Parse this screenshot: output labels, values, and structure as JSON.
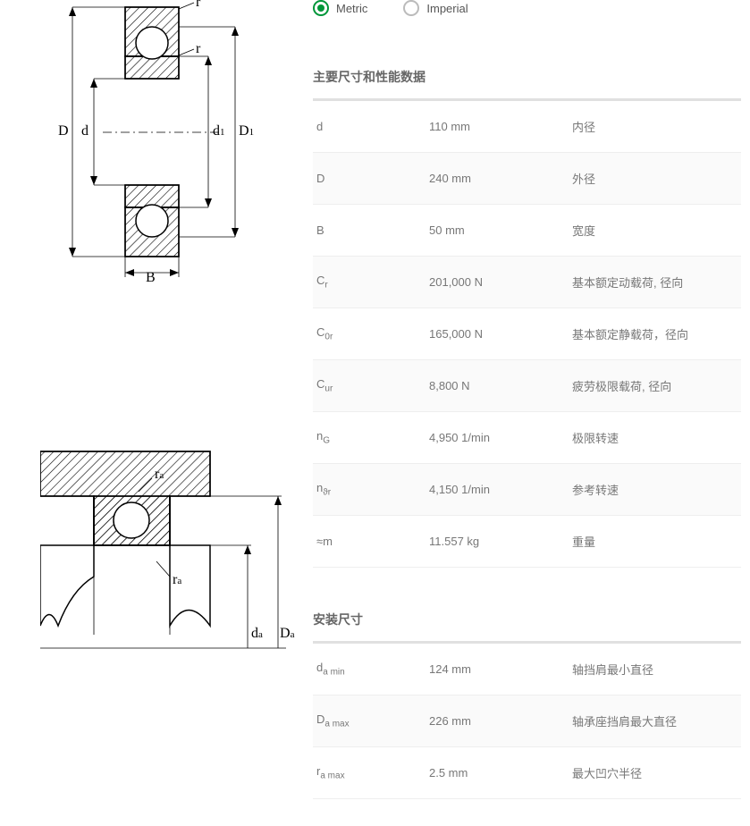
{
  "units": {
    "metric_label": "Metric",
    "imperial_label": "Imperial",
    "selected": "metric"
  },
  "colors": {
    "accent": "#009639",
    "text": "#666666",
    "row_alt_bg": "#fafafa",
    "border": "#e0e0e0"
  },
  "sections": [
    {
      "title": "主要尺寸和性能数据",
      "rows": [
        {
          "sym": "d",
          "sub": "",
          "value": "110 mm",
          "desc": "内径",
          "alt": false
        },
        {
          "sym": "D",
          "sub": "",
          "value": "240 mm",
          "desc": "外径",
          "alt": true
        },
        {
          "sym": "B",
          "sub": "",
          "value": "50 mm",
          "desc": "宽度",
          "alt": false
        },
        {
          "sym": "C",
          "sub": "r",
          "value": "201,000 N",
          "desc": "基本额定动载荷, 径向",
          "alt": true
        },
        {
          "sym": "C",
          "sub": "0r",
          "value": "165,000 N",
          "desc": "基本额定静载荷，径向",
          "alt": false
        },
        {
          "sym": "C",
          "sub": "ur",
          "value": "8,800 N",
          "desc": "疲劳极限载荷, 径向",
          "alt": true
        },
        {
          "sym": "n",
          "sub": "G",
          "value": "4,950 1/min",
          "desc": "极限转速",
          "alt": false
        },
        {
          "sym": "n",
          "sub": "ϑr",
          "value": "4,150 1/min",
          "desc": "参考转速",
          "alt": true
        },
        {
          "sym": "≈m",
          "sub": "",
          "value": "11.557 kg",
          "desc": "重量",
          "alt": false
        }
      ]
    },
    {
      "title": "安装尺寸",
      "rows": [
        {
          "sym": "d",
          "sub": "a min",
          "value": "124 mm",
          "desc": "轴挡肩最小直径",
          "alt": false
        },
        {
          "sym": "D",
          "sub": "a max",
          "value": "226 mm",
          "desc": "轴承座挡肩最大直径",
          "alt": true
        },
        {
          "sym": "r",
          "sub": "a max",
          "value": "2.5 mm",
          "desc": "最大凹穴半径",
          "alt": false
        }
      ]
    }
  ],
  "diagram1_labels": {
    "D": "D",
    "d": "d",
    "d1": "d",
    "d1_sub": "1",
    "D1": "D",
    "D1_sub": "1",
    "r1": "r",
    "r2": "r",
    "B": "B"
  },
  "diagram2_labels": {
    "ra1": "r",
    "ra1_sub": "a",
    "ra2": "r",
    "ra2_sub": "a",
    "da": "d",
    "da_sub": "a",
    "Da": "D",
    "Da_sub": "a"
  }
}
